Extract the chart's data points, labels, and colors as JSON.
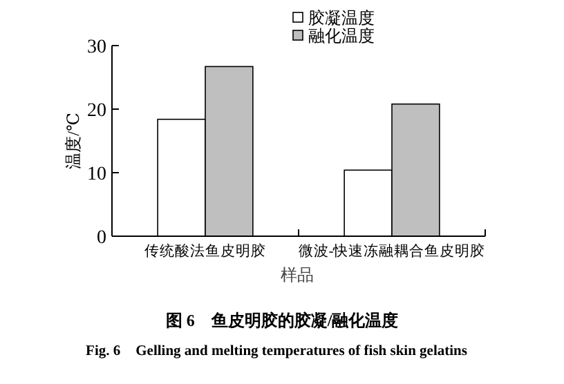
{
  "chart_data": {
    "type": "bar",
    "title": "图 6　鱼皮明胶的胶凝/融化温度",
    "subtitle": "Fig. 6　Gelling and melting temperatures of fish skin gelatins",
    "xlabel": "样品",
    "ylabel": "温度/℃",
    "categories": [
      "传统酸法鱼皮明胶",
      "微波-快速冻融耦合鱼皮明胶"
    ],
    "series": [
      {
        "name": "胶凝温度",
        "color": "#ffffff",
        "values": [
          18.4,
          10.4
        ]
      },
      {
        "name": "融化温度",
        "color": "#bfbfbf",
        "values": [
          26.7,
          20.8
        ]
      }
    ],
    "ylim": [
      0,
      30
    ],
    "yticks": [
      0,
      10,
      20,
      30
    ],
    "grid": false,
    "legend": "top right"
  }
}
